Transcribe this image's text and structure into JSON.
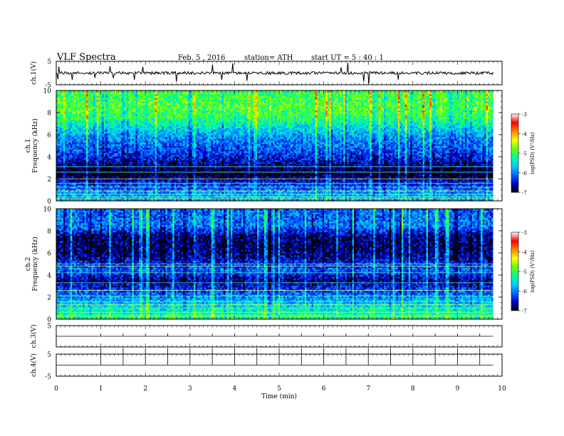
{
  "header": {
    "title": "VLF  Spectra",
    "date": "Feb. 5  , 2016",
    "station": "station= ATH",
    "start": "start  UT  =   5  : 40 : 1"
  },
  "colorbar": {
    "label": "log(PSD) (V²/Hz)",
    "ticks": [
      "-3",
      "-4",
      "-5",
      "-6",
      "-7"
    ],
    "stops": [
      "#000000",
      "#0000cc",
      "#0066ff",
      "#00ccff",
      "#00ff99",
      "#66ff00",
      "#ffff00",
      "#ff8800",
      "#ff0000",
      "#ffffff"
    ]
  },
  "chart_data": [
    {
      "type": "line",
      "panel": "ch.1 waveform",
      "ylabel": "ch.1(V)",
      "ylim": [
        -5,
        5
      ],
      "yticks": [
        "5",
        "-5"
      ],
      "x": [
        0,
        1,
        2,
        3,
        4,
        5,
        6,
        7,
        8,
        9,
        9.8
      ],
      "values": [
        0,
        0,
        0,
        0,
        0,
        0,
        0,
        0,
        0,
        0,
        0
      ]
    },
    {
      "type": "heatmap",
      "panel": "ch.1 spectrogram",
      "ylabel": "ch.1  Frequency  (kHz)",
      "ylim": [
        0,
        10
      ],
      "yticks": [
        "0",
        "2",
        "4",
        "6",
        "8",
        "10"
      ],
      "zlim": [
        -7,
        -3
      ],
      "freq_khz": [
        0.5,
        1.5,
        2.5,
        3.5,
        4.5,
        5.5,
        6.5,
        7.5,
        8.5,
        9.5
      ],
      "mean_log_psd": [
        -5.8,
        -6.3,
        -7.0,
        -6.6,
        -6.2,
        -6.0,
        -5.6,
        -5.1,
        -4.9,
        -5.0
      ]
    },
    {
      "type": "heatmap",
      "panel": "ch.2 spectrogram",
      "ylabel": "ch.2  Frequency  (kHz)",
      "ylim": [
        0,
        10
      ],
      "yticks": [
        "0",
        "2",
        "4",
        "6",
        "8",
        "10"
      ],
      "zlim": [
        -7,
        -3
      ],
      "freq_khz": [
        0.5,
        1.5,
        2.5,
        3.5,
        4.5,
        5.5,
        6.5,
        7.5,
        8.5,
        9.5
      ],
      "mean_log_psd": [
        -5.2,
        -5.7,
        -6.2,
        -6.7,
        -6.1,
        -6.6,
        -6.8,
        -6.7,
        -6.0,
        -6.1
      ]
    },
    {
      "type": "line",
      "panel": "ch.3 waveform",
      "ylabel": "ch.3(V)",
      "ylim": [
        -5,
        5
      ],
      "yticks": [
        "5"
      ],
      "x": [
        0,
        9.8
      ],
      "values": [
        0,
        0
      ]
    },
    {
      "type": "line",
      "panel": "ch.4 waveform",
      "ylabel": "ch.4(V)",
      "ylim": [
        -5,
        5
      ],
      "yticks": [
        "5",
        "-5"
      ],
      "x": [
        0,
        9.8
      ],
      "values": [
        0,
        0
      ]
    }
  ],
  "xaxis": {
    "label": "Time  (min)",
    "range": [
      0,
      10
    ],
    "ticks": [
      "0",
      "1",
      "2",
      "3",
      "4",
      "5",
      "6",
      "7",
      "8",
      "9",
      "10"
    ]
  }
}
